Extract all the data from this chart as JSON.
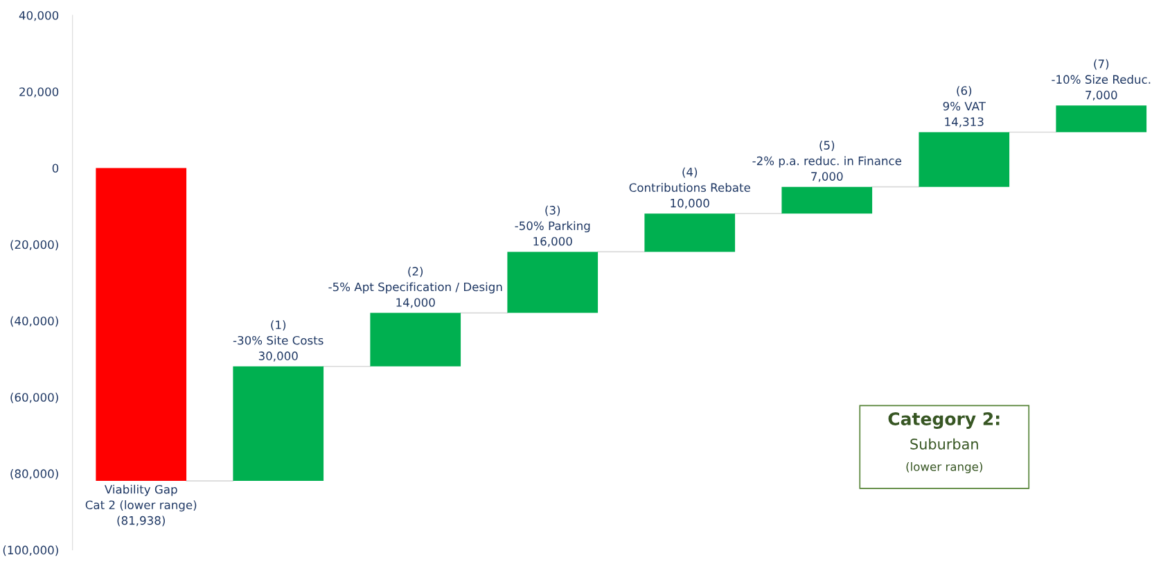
{
  "chart_data": {
    "type": "bar",
    "categories": [
      "Viability Gap\nCat 2 (lower range)",
      "(1)\n-30% Site Costs",
      "(2)\n-5% Apt Specification / Design",
      "(3)\n-50% Parking",
      "(4)\nContributions Rebate",
      "(5)\n-2% p.a. reduc. in Finance",
      "(6)\n9% VAT",
      "(7)\n-10% Size Reduc."
    ],
    "values": [
      -81938,
      30000,
      14000,
      16000,
      10000,
      7000,
      14313,
      7000
    ],
    "base": [
      0,
      -81938,
      -51938,
      -37938,
      -21938,
      -11938,
      -4938,
      9375
    ],
    "colors": [
      "#ff0000",
      "#00b050",
      "#00b050",
      "#00b050",
      "#00b050",
      "#00b050",
      "#00b050",
      "#00b050"
    ],
    "value_labels": [
      "(81,938)",
      "30,000",
      "14,000",
      "16,000",
      "10,000",
      "7,000",
      "14,313",
      "7,000"
    ],
    "ylim": [
      -100000,
      40000
    ],
    "yticks": [
      {
        "value": -100000,
        "label": "(100,000)"
      },
      {
        "value": -80000,
        "label": "(80,000)"
      },
      {
        "value": -60000,
        "label": "(60,000)"
      },
      {
        "value": -40000,
        "label": "(40,000)"
      },
      {
        "value": -20000,
        "label": "(20,000)"
      },
      0,
      {
        "value": 20000,
        "label": "20,000"
      },
      {
        "value": 40000,
        "label": "40,000"
      }
    ],
    "tick_labels": "y",
    "grid": false,
    "annotations": [
      "Category 2:",
      "Suburban",
      "(lower range)"
    ]
  }
}
